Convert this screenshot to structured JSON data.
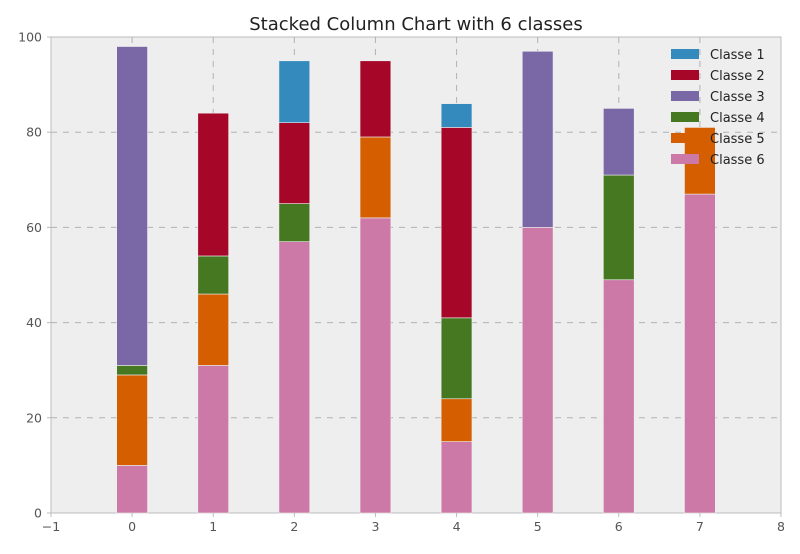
{
  "chart_data": {
    "type": "bar",
    "title": "Stacked Column Chart with 6 classes",
    "xlabel": "",
    "ylabel": "",
    "xlim": [
      -1,
      8
    ],
    "ylim": [
      0,
      100
    ],
    "xticks": [
      -1,
      0,
      1,
      2,
      3,
      4,
      5,
      6,
      7,
      8
    ],
    "yticks": [
      0,
      20,
      40,
      60,
      80,
      100
    ],
    "x": [
      0,
      1,
      2,
      3,
      4,
      5,
      6,
      7
    ],
    "stacked": true,
    "grid": true,
    "legend_position": "top-right",
    "series": [
      {
        "name": "Classe 6",
        "color": "#CC79A7",
        "values": [
          10,
          31,
          57,
          62,
          15,
          60,
          49,
          67
        ]
      },
      {
        "name": "Classe 5",
        "color": "#D55E00",
        "values": [
          19,
          15,
          0,
          17,
          9,
          0,
          0,
          14
        ]
      },
      {
        "name": "Classe 4",
        "color": "#467821",
        "values": [
          2,
          8,
          8,
          0,
          17,
          0,
          22,
          0
        ]
      },
      {
        "name": "Classe 3",
        "color": "#7A68A6",
        "values": [
          67,
          0,
          0,
          0,
          0,
          37,
          14,
          0
        ]
      },
      {
        "name": "Classe 2",
        "color": "#A60628",
        "values": [
          0,
          30,
          17,
          16,
          40,
          0,
          0,
          0
        ]
      },
      {
        "name": "Classe 1",
        "color": "#348ABD",
        "values": [
          0,
          0,
          13,
          0,
          5,
          0,
          0,
          0
        ]
      }
    ],
    "legend_order": [
      "Classe 1",
      "Classe 2",
      "Classe 3",
      "Classe 4",
      "Classe 5",
      "Classe 6"
    ]
  }
}
